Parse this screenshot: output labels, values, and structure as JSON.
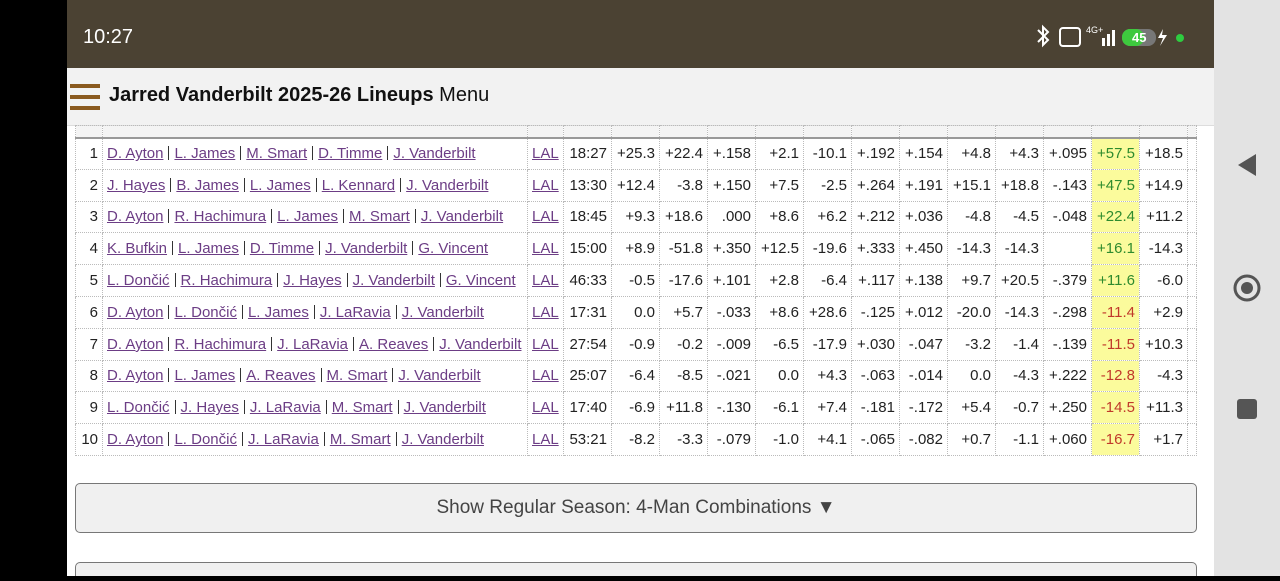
{
  "status": {
    "time": "10:27",
    "network": "4G+",
    "battery": "45"
  },
  "header": {
    "title": "Jarred Vanderbilt 2025-26 Lineups",
    "menu": "Menu"
  },
  "table": {
    "highlight_column": 10,
    "rows": [
      {
        "rank": 1,
        "players": [
          "D. Ayton",
          "L. James",
          "M. Smart",
          "D. Timme",
          "J. Vanderbilt"
        ],
        "team": "LAL",
        "time": "18:27",
        "stats": [
          "+25.3",
          "+22.4",
          "+.158",
          "+2.1",
          "-10.1",
          "+.192",
          "+.154",
          "+4.8",
          "+4.3",
          "+.095",
          "+57.5",
          "+18.5"
        ]
      },
      {
        "rank": 2,
        "players": [
          "J. Hayes",
          "B. James",
          "L. James",
          "L. Kennard",
          "J. Vanderbilt"
        ],
        "team": "LAL",
        "time": "13:30",
        "stats": [
          "+12.4",
          "-3.8",
          "+.150",
          "+7.5",
          "-2.5",
          "+.264",
          "+.191",
          "+15.1",
          "+18.8",
          "-.143",
          "+47.5",
          "+14.9"
        ]
      },
      {
        "rank": 3,
        "players": [
          "D. Ayton",
          "R. Hachimura",
          "L. James",
          "M. Smart",
          "J. Vanderbilt"
        ],
        "team": "LAL",
        "time": "18:45",
        "stats": [
          "+9.3",
          "+18.6",
          ".000",
          "+8.6",
          "+6.2",
          "+.212",
          "+.036",
          "-4.8",
          "-4.5",
          "-.048",
          "+22.4",
          "+11.2"
        ]
      },
      {
        "rank": 4,
        "players": [
          "K. Bufkin",
          "L. James",
          "D. Timme",
          "J. Vanderbilt",
          "G. Vincent"
        ],
        "team": "LAL",
        "time": "15:00",
        "stats": [
          "+8.9",
          "-51.8",
          "+.350",
          "+12.5",
          "-19.6",
          "+.333",
          "+.450",
          "-14.3",
          "-14.3",
          null,
          "+16.1",
          "-14.3"
        ]
      },
      {
        "rank": 5,
        "players": [
          "L. Dončić",
          "R. Hachimura",
          "J. Hayes",
          "J. Vanderbilt",
          "G. Vincent"
        ],
        "team": "LAL",
        "time": "46:33",
        "stats": [
          "-0.5",
          "-17.6",
          "+.101",
          "+2.8",
          "-6.4",
          "+.117",
          "+.138",
          "+9.7",
          "+20.5",
          "-.379",
          "+11.6",
          "-6.0"
        ]
      },
      {
        "rank": 6,
        "players": [
          "D. Ayton",
          "L. Dončić",
          "L. James",
          "J. LaRavia",
          "J. Vanderbilt"
        ],
        "team": "LAL",
        "time": "17:31",
        "stats": [
          "0.0",
          "+5.7",
          "-.033",
          "+8.6",
          "+28.6",
          "-.125",
          "+.012",
          "-20.0",
          "-14.3",
          "-.298",
          "-11.4",
          "+2.9"
        ]
      },
      {
        "rank": 7,
        "players": [
          "D. Ayton",
          "R. Hachimura",
          "J. LaRavia",
          "A. Reaves",
          "J. Vanderbilt"
        ],
        "team": "LAL",
        "time": "27:54",
        "stats": [
          "-0.9",
          "-0.2",
          "-.009",
          "-6.5",
          "-17.9",
          "+.030",
          "-.047",
          "-3.2",
          "-1.4",
          "-.139",
          "-11.5",
          "+10.3"
        ]
      },
      {
        "rank": 8,
        "players": [
          "D. Ayton",
          "L. James",
          "A. Reaves",
          "M. Smart",
          "J. Vanderbilt"
        ],
        "team": "LAL",
        "time": "25:07",
        "stats": [
          "-6.4",
          "-8.5",
          "-.021",
          "0.0",
          "+4.3",
          "-.063",
          "-.014",
          "0.0",
          "-4.3",
          "+.222",
          "-12.8",
          "-4.3"
        ]
      },
      {
        "rank": 9,
        "players": [
          "L. Dončić",
          "J. Hayes",
          "J. LaRavia",
          "M. Smart",
          "J. Vanderbilt"
        ],
        "team": "LAL",
        "time": "17:40",
        "stats": [
          "-6.9",
          "+11.8",
          "-.130",
          "-6.1",
          "+7.4",
          "-.181",
          "-.172",
          "+5.4",
          "-0.7",
          "+.250",
          "-14.5",
          "+11.3"
        ]
      },
      {
        "rank": 10,
        "players": [
          "D. Ayton",
          "L. Dončić",
          "J. LaRavia",
          "M. Smart",
          "J. Vanderbilt"
        ],
        "team": "LAL",
        "time": "53:21",
        "stats": [
          "-8.2",
          "-3.3",
          "-.079",
          "-1.0",
          "+4.1",
          "-.065",
          "-.082",
          "+0.7",
          "-1.1",
          "+.060",
          "-16.7",
          "+1.7"
        ]
      }
    ]
  },
  "button": {
    "label": "Show Regular Season: 4-Man Combinations ▼"
  }
}
